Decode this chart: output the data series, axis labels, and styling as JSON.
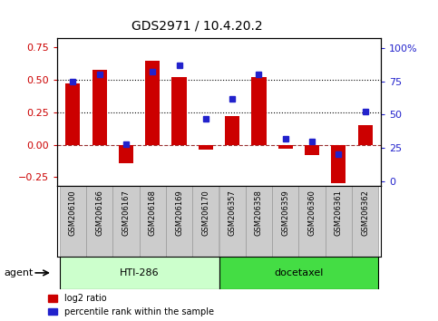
{
  "title": "GDS2971 / 10.4.20.2",
  "samples": [
    "GSM206100",
    "GSM206166",
    "GSM206167",
    "GSM206168",
    "GSM206169",
    "GSM206170",
    "GSM206357",
    "GSM206358",
    "GSM206359",
    "GSM206360",
    "GSM206361",
    "GSM206362"
  ],
  "log2_ratio": [
    0.47,
    0.58,
    -0.14,
    0.65,
    0.52,
    -0.04,
    0.22,
    0.52,
    -0.03,
    -0.08,
    -0.3,
    0.15
  ],
  "percentile_rank": [
    75,
    80,
    28,
    82,
    87,
    47,
    62,
    80,
    32,
    30,
    20,
    52
  ],
  "bar_color": "#cc0000",
  "dot_color": "#2222cc",
  "ylim_left": [
    -0.32,
    0.82
  ],
  "ylim_right": [
    -3.7,
    107
  ],
  "yticks_left": [
    -0.25,
    0.0,
    0.25,
    0.5,
    0.75
  ],
  "yticks_right": [
    0,
    25,
    50,
    75,
    100
  ],
  "hlines": [
    0.5,
    0.25
  ],
  "zero_line_color": "#993333",
  "agent_groups": [
    {
      "label": "HTI-286",
      "start": 0,
      "end": 6,
      "color": "#ccffcc"
    },
    {
      "label": "docetaxel",
      "start": 6,
      "end": 12,
      "color": "#44dd44"
    }
  ],
  "legend_items": [
    {
      "label": "log2 ratio",
      "color": "#cc0000"
    },
    {
      "label": "percentile rank within the sample",
      "color": "#2222cc"
    }
  ],
  "background_color": "#ffffff",
  "bar_width": 0.55,
  "agent_label": "agent",
  "ylabel_left_color": "#cc0000",
  "ylabel_right_color": "#2222cc",
  "tick_bg_color": "#cccccc",
  "tick_border_color": "#999999",
  "dot_size": 5
}
